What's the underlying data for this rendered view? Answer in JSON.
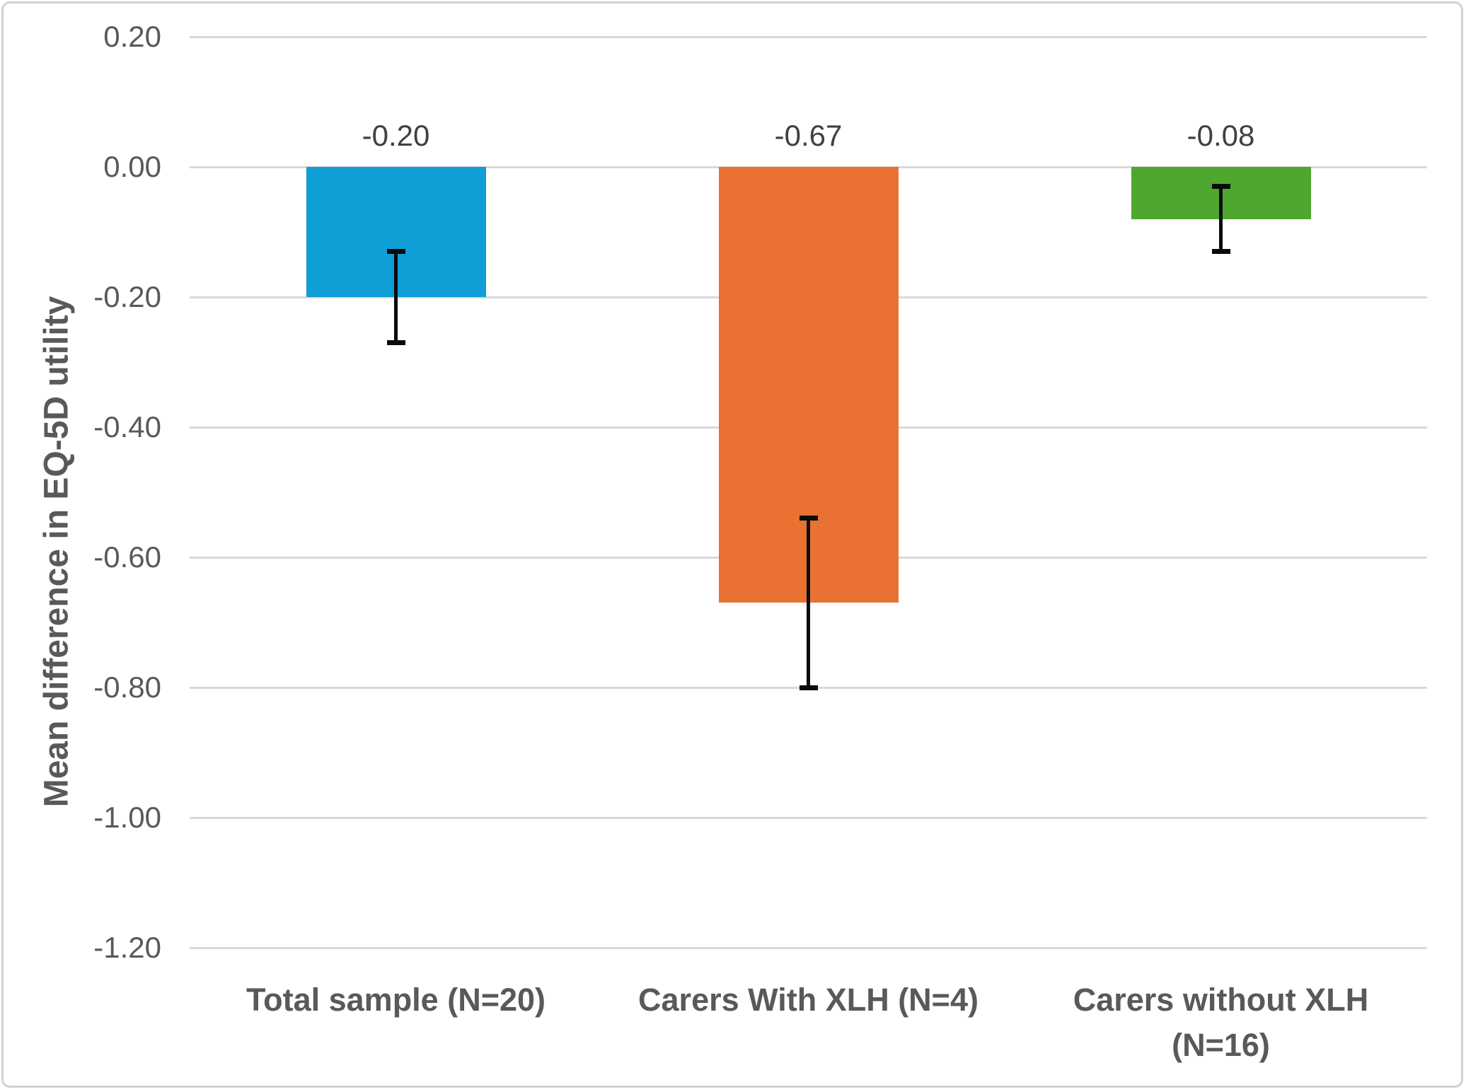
{
  "chart_data": {
    "type": "bar",
    "title": "",
    "xlabel": "",
    "ylabel": "Mean difference in EQ-5D utility",
    "categories": [
      "Total sample (N=20)",
      "Carers With XLH (N=4)",
      "Carers without XLH (N=16)"
    ],
    "values": [
      -0.2,
      -0.67,
      -0.08
    ],
    "data_labels": [
      "-0.20",
      "-0.67",
      "-0.08"
    ],
    "error_bars": [
      {
        "high": -0.13,
        "low": -0.27
      },
      {
        "high": -0.54,
        "low": -0.8
      },
      {
        "high": -0.03,
        "low": -0.13
      }
    ],
    "bar_colors": [
      "#0F9ED5",
      "#E97132",
      "#4EA72E"
    ],
    "yticks": [
      0.2,
      0.0,
      -0.2,
      -0.4,
      -0.6,
      -0.8,
      -1.0,
      -1.2
    ],
    "ytick_labels": [
      "0.20",
      "0.00",
      "-0.20",
      "-0.40",
      "-0.60",
      "-0.80",
      "-1.00",
      "-1.20"
    ],
    "ylim": [
      -1.2,
      0.2
    ],
    "grid": true,
    "legend_position": "none",
    "colors": {
      "grid": "#D9D9D9",
      "tick_text": "#595959",
      "axis_title_text": "#595959",
      "category_text": "#595959",
      "data_label_text": "#404040",
      "error_bar": "#0b0b0b",
      "frame_border": "#D2D2D2",
      "background": "#FFFFFF"
    }
  }
}
